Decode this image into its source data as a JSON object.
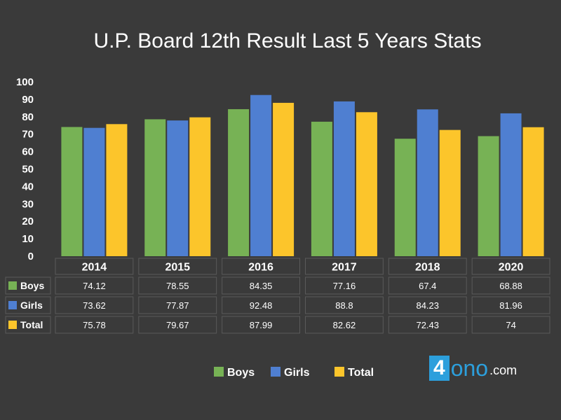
{
  "chart_data": {
    "type": "bar",
    "title": "U.P. Board 12th Result Last 5 Years Stats",
    "categories": [
      "2014",
      "2015",
      "2016",
      "2017",
      "2018",
      "2020"
    ],
    "series": [
      {
        "name": "Boys",
        "color": "#77b255",
        "values": [
          74.12,
          78.55,
          84.35,
          77.16,
          67.4,
          68.88
        ]
      },
      {
        "name": "Girls",
        "color": "#4f7fd1",
        "values": [
          73.62,
          77.87,
          92.48,
          88.8,
          84.23,
          81.96
        ]
      },
      {
        "name": "Total",
        "color": "#fcc52b",
        "values": [
          75.78,
          79.67,
          87.99,
          82.62,
          72.43,
          74
        ]
      }
    ],
    "table_values": [
      [
        "74.12",
        "78.55",
        "84.35",
        "77.16",
        "67.4",
        "68.88"
      ],
      [
        "73.62",
        "77.87",
        "92.48",
        "88.8",
        "84.23",
        "81.96"
      ],
      [
        "75.78",
        "79.67",
        "87.99",
        "82.62",
        "72.43",
        "74"
      ]
    ],
    "y_ticks": [
      "0",
      "10",
      "20",
      "30",
      "40",
      "50",
      "60",
      "70",
      "80",
      "90",
      "100"
    ],
    "ylim": [
      0,
      100
    ],
    "grid": false,
    "legend_position": "bottom",
    "data_table": true
  },
  "watermark": {
    "prefix": "4",
    "main": "ono",
    "suffix": ".com"
  }
}
